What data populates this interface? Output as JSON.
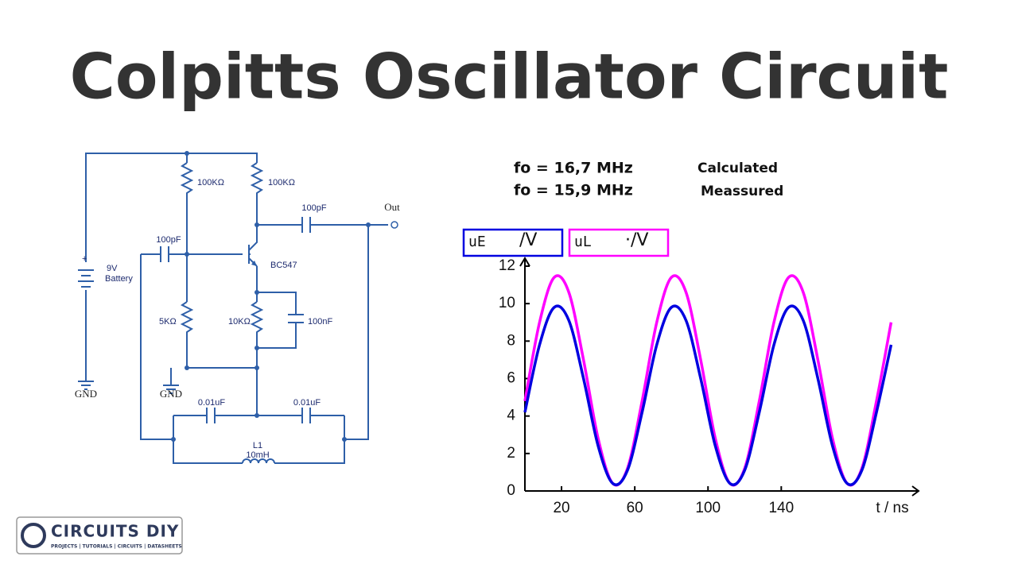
{
  "title": "Colpitts Oscillator Circuit",
  "circuit": {
    "labels": {
      "r1": "100KΩ",
      "r2": "100KΩ",
      "c_out": "100pF",
      "out": "Out",
      "c_in": "100pF",
      "plus": "+",
      "battery_v": "9V",
      "battery": "Battery",
      "transistor": "BC547",
      "r3": "5KΩ",
      "r4": "10KΩ",
      "c_e": "100nF",
      "gnd1": "GND",
      "gnd2": "GND",
      "c1": "0.01uF",
      "c2": "0.01uF",
      "l_name": "L1",
      "l_value": "10mH"
    }
  },
  "logo": {
    "name": "CIRCUITS DIY",
    "tagline": "PROJECTS | TUTORIALS | CIRCUITS | DATASHEETS"
  },
  "chart_data": {
    "type": "line",
    "annotations": [
      {
        "text": "fo = 16,7 MHz",
        "note": "Calculated"
      },
      {
        "text": "fo = 15,9 MHz",
        "note": "Meassured"
      }
    ],
    "x_label": "t / ns",
    "x": [
      0,
      8,
      16,
      24,
      32,
      40,
      48,
      56,
      64,
      72,
      80,
      88,
      96,
      104,
      112,
      120,
      128,
      136,
      144,
      152,
      160,
      168,
      176,
      184,
      192,
      200
    ],
    "series": [
      {
        "name": "uL",
        "unit": "·/V",
        "color": "#ff00ff",
        "values": [
          4.8,
          9.0,
          11.4,
          10.6,
          7.0,
          2.8,
          0.4,
          1.2,
          4.8,
          9.0,
          11.4,
          10.6,
          7.0,
          2.8,
          0.4,
          1.2,
          4.8,
          9.0,
          11.4,
          10.6,
          7.0,
          2.8,
          0.4,
          1.2,
          4.8,
          9.0
        ]
      },
      {
        "name": "uE",
        "unit": "/V",
        "color": "#0000e0",
        "values": [
          4.2,
          7.8,
          9.8,
          9.1,
          6.0,
          2.4,
          0.4,
          1.1,
          4.2,
          7.8,
          9.8,
          9.1,
          6.0,
          2.4,
          0.4,
          1.1,
          4.2,
          7.8,
          9.8,
          9.1,
          6.0,
          2.4,
          0.4,
          1.1,
          4.2,
          7.8
        ]
      }
    ],
    "xlim": [
      0,
      215
    ],
    "xticks": [
      20,
      60,
      100,
      140
    ],
    "ylim": [
      0,
      12
    ],
    "yticks": [
      0,
      2,
      4,
      6,
      8,
      10,
      12
    ]
  }
}
